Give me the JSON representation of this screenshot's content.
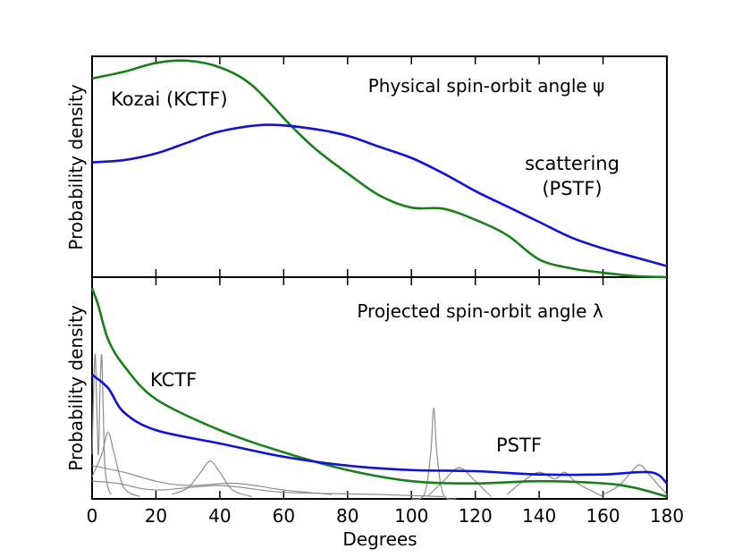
{
  "chart_data": [
    {
      "type": "line",
      "title": "Physical spin-orbit angle ψ",
      "ylabel": "Probability density",
      "xlim": [
        0,
        180
      ],
      "ylim": [
        0,
        1
      ],
      "series": [
        {
          "name": "Kozai (KCTF)",
          "color": "#178017",
          "x": [
            0,
            10,
            20,
            30,
            40,
            50,
            62,
            70,
            80,
            90,
            100,
            110,
            120,
            130,
            140,
            150,
            160,
            170,
            180
          ],
          "values": [
            0.9,
            0.93,
            0.97,
            0.98,
            0.95,
            0.87,
            0.69,
            0.58,
            0.47,
            0.37,
            0.315,
            0.31,
            0.26,
            0.19,
            0.08,
            0.04,
            0.02,
            0.005,
            0
          ]
        },
        {
          "name": "scattering (PSTF)",
          "color": "#1010e0",
          "x": [
            0,
            10,
            20,
            30,
            40,
            55,
            70,
            80,
            90,
            100,
            110,
            120,
            130,
            140,
            150,
            160,
            170,
            180
          ],
          "values": [
            0.52,
            0.53,
            0.56,
            0.61,
            0.66,
            0.69,
            0.67,
            0.64,
            0.59,
            0.54,
            0.47,
            0.39,
            0.32,
            0.25,
            0.18,
            0.13,
            0.09,
            0.05
          ]
        }
      ]
    },
    {
      "type": "line",
      "title": "Projected spin-orbit angle λ",
      "ylabel": "Probability density",
      "xlabel": "Degrees",
      "xlim": [
        0,
        180
      ],
      "ylim": [
        0,
        1
      ],
      "xticks": [
        0,
        20,
        40,
        60,
        80,
        100,
        120,
        140,
        160,
        180
      ],
      "series": [
        {
          "color": "#8c8c8c",
          "x": [
            0,
            0.5,
            1,
            1.5,
            2,
            2.5,
            3,
            3.5,
            4,
            5,
            6
          ],
          "values": [
            0.2,
            0.5,
            0.65,
            0.4,
            0.2,
            0.5,
            0.65,
            0.4,
            0.15,
            0.05,
            0.02
          ]
        },
        {
          "color": "#8c8c8c",
          "x": [
            0,
            3,
            5,
            7,
            10,
            15
          ],
          "values": [
            0.1,
            0.2,
            0.3,
            0.2,
            0.05,
            0.01
          ]
        },
        {
          "color": "#8c8c8c",
          "x": [
            25,
            30,
            34,
            37,
            40,
            44,
            50
          ],
          "values": [
            0.02,
            0.05,
            0.12,
            0.17,
            0.12,
            0.04,
            0.01
          ]
        },
        {
          "color": "#8c8c8c",
          "x": [
            100,
            104,
            106,
            107,
            108,
            110,
            114
          ],
          "values": [
            0,
            0.02,
            0.2,
            0.41,
            0.2,
            0.02,
            0
          ]
        },
        {
          "color": "#8c8c8c",
          "x": [
            105,
            110,
            115,
            120,
            125
          ],
          "values": [
            0.01,
            0.08,
            0.14,
            0.08,
            0.01
          ]
        },
        {
          "color": "#8c8c8c",
          "x": [
            130,
            135,
            140,
            145,
            148,
            152,
            160
          ],
          "values": [
            0.02,
            0.08,
            0.12,
            0.09,
            0.12,
            0.07,
            0.01
          ]
        },
        {
          "color": "#8c8c8c",
          "x": [
            160,
            165,
            170,
            172,
            175,
            180
          ],
          "values": [
            0.02,
            0.06,
            0.14,
            0.15,
            0.1,
            0.02
          ]
        },
        {
          "color": "#8c8c8c",
          "x": [
            0,
            10,
            20,
            30,
            45,
            60,
            75
          ],
          "values": [
            0.15,
            0.12,
            0.08,
            0.06,
            0.07,
            0.04,
            0.02
          ]
        },
        {
          "color": "#8c8c8c",
          "x": [
            0,
            8,
            20,
            40,
            60,
            90,
            110
          ],
          "values": [
            0.08,
            0.07,
            0.04,
            0.06,
            0.03,
            0.02,
            0.01
          ]
        },
        {
          "name": "KCTF",
          "color": "#178017",
          "x": [
            0,
            2,
            5,
            10,
            20,
            40,
            60,
            80,
            100,
            120,
            140,
            160,
            170,
            180
          ],
          "values": [
            0.95,
            0.87,
            0.72,
            0.6,
            0.45,
            0.31,
            0.21,
            0.13,
            0.08,
            0.07,
            0.08,
            0.07,
            0.05,
            0.01
          ]
        },
        {
          "name": "PSTF",
          "color": "#1010e0",
          "x": [
            0,
            5,
            10,
            20,
            40,
            60,
            80,
            100,
            120,
            140,
            160,
            175,
            180
          ],
          "values": [
            0.56,
            0.5,
            0.39,
            0.31,
            0.25,
            0.19,
            0.15,
            0.13,
            0.125,
            0.11,
            0.11,
            0.12,
            0.07
          ]
        }
      ]
    }
  ]
}
